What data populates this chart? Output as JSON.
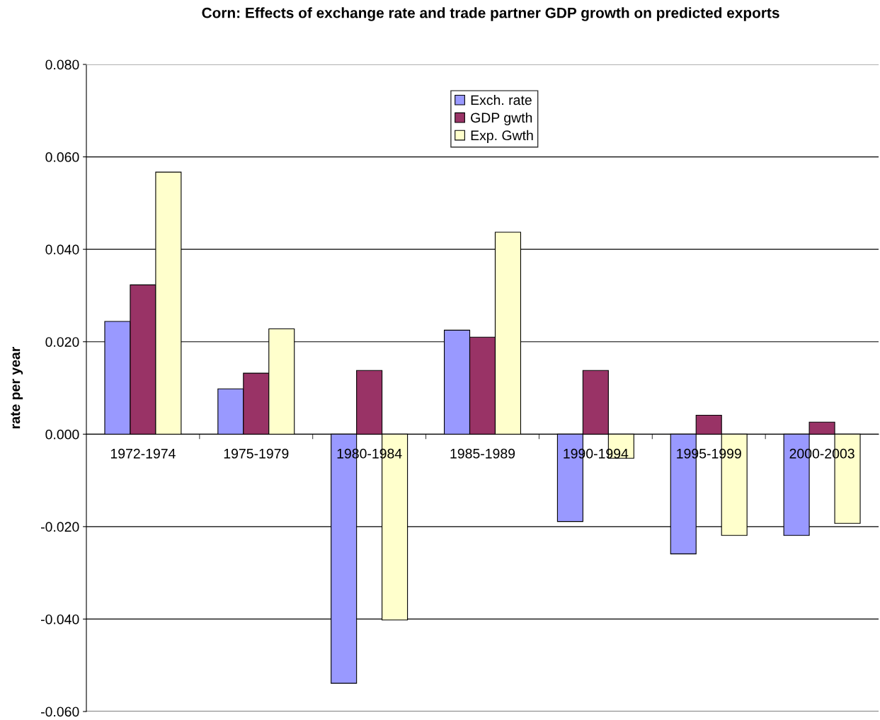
{
  "chart_data": {
    "type": "bar",
    "title": "Corn: Effects of exchange rate and trade partner GDP growth on predicted exports",
    "ylabel": "rate per year",
    "categories": [
      "1972-1974",
      "1975-1979",
      "1980-1984",
      "1985-1989",
      "1990-1994",
      "1995-1999",
      "2000-2003"
    ],
    "series": [
      {
        "name": "Exch. rate",
        "color": "#9999ff",
        "values": [
          0.0244,
          0.0098,
          -0.0539,
          0.0225,
          -0.0189,
          -0.0259,
          -0.0219
        ]
      },
      {
        "name": "GDP gwth",
        "color": "#993366",
        "values": [
          0.0323,
          0.0132,
          0.0138,
          0.021,
          0.0138,
          0.0041,
          0.0026
        ]
      },
      {
        "name": "Exp. Gwth",
        "color": "#ffffcc",
        "values": [
          0.0567,
          0.0228,
          -0.0402,
          0.0437,
          -0.0052,
          -0.0219,
          -0.0193
        ]
      }
    ],
    "ylim": [
      -0.06,
      0.08
    ],
    "yticks": [
      {
        "value": -0.06,
        "label": "-0.060"
      },
      {
        "value": -0.04,
        "label": "-0.040"
      },
      {
        "value": -0.02,
        "label": "-0.020"
      },
      {
        "value": 0,
        "label": "0.000"
      },
      {
        "value": 0.02,
        "label": "0.020"
      },
      {
        "value": 0.04,
        "label": "0.040"
      },
      {
        "value": 0.06,
        "label": "0.060"
      },
      {
        "value": 0.08,
        "label": "0.080"
      }
    ],
    "grid": "y",
    "legend": "top"
  }
}
